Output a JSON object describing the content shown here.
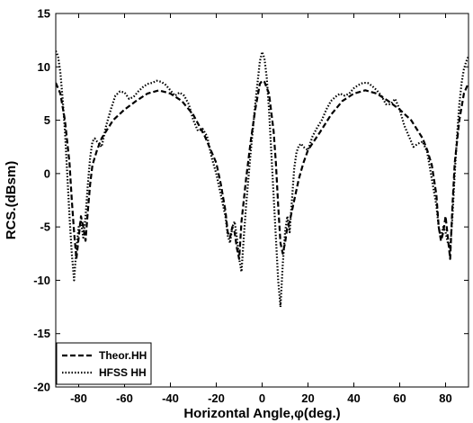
{
  "chart_data": {
    "type": "line",
    "xlabel": "Horizontal Angle,φ(deg.)",
    "ylabel": "RCS.(dBsm)",
    "xlim": [
      -90,
      90
    ],
    "ylim": [
      -20,
      15
    ],
    "xticks": [
      -80,
      -60,
      -40,
      -20,
      0,
      20,
      40,
      60,
      80
    ],
    "yticks": [
      -20,
      -15,
      -10,
      -5,
      0,
      5,
      10,
      15
    ],
    "grid": false,
    "legend_position": "bottom-left",
    "series": [
      {
        "name": "Theor.HH",
        "style": "dashed",
        "color": "#000000",
        "points": [
          [
            -90,
            8.5
          ],
          [
            -88,
            7.5
          ],
          [
            -86,
            5.0
          ],
          [
            -84,
            1.0
          ],
          [
            -83,
            -2.5
          ],
          [
            -82,
            -5.5
          ],
          [
            -81,
            -8.0
          ],
          [
            -80,
            -6.0
          ],
          [
            -79,
            -4.0
          ],
          [
            -78,
            -5.0
          ],
          [
            -77,
            -6.3
          ],
          [
            -76,
            -3.5
          ],
          [
            -75,
            -1.0
          ],
          [
            -74,
            0.8
          ],
          [
            -72,
            2.2
          ],
          [
            -70,
            3.3
          ],
          [
            -65,
            5.0
          ],
          [
            -60,
            6.0
          ],
          [
            -55,
            6.8
          ],
          [
            -50,
            7.5
          ],
          [
            -45,
            7.8
          ],
          [
            -40,
            7.5
          ],
          [
            -35,
            6.8
          ],
          [
            -30,
            5.5
          ],
          [
            -25,
            3.5
          ],
          [
            -20,
            1.0
          ],
          [
            -18,
            -1.0
          ],
          [
            -16,
            -3.5
          ],
          [
            -15,
            -5.5
          ],
          [
            -14,
            -6.0
          ],
          [
            -13,
            -5.0
          ],
          [
            -12,
            -5.5
          ],
          [
            -11,
            -7.0
          ],
          [
            -10,
            -8.0
          ],
          [
            -9,
            -4.5
          ],
          [
            -7,
            -0.5
          ],
          [
            -5,
            3.0
          ],
          [
            -3,
            6.0
          ],
          [
            -1,
            8.4
          ],
          [
            0,
            8.7
          ],
          [
            1,
            8.6
          ],
          [
            3,
            7.5
          ],
          [
            5,
            4.0
          ],
          [
            6,
            1.0
          ],
          [
            7,
            -3.0
          ],
          [
            8,
            -6.5
          ],
          [
            9,
            -7.5
          ],
          [
            10,
            -6.5
          ],
          [
            11,
            -5.0
          ],
          [
            12,
            -4.5
          ],
          [
            14,
            -2.5
          ],
          [
            16,
            -0.5
          ],
          [
            18,
            1.0
          ],
          [
            20,
            2.2
          ],
          [
            25,
            3.8
          ],
          [
            30,
            5.5
          ],
          [
            35,
            6.8
          ],
          [
            40,
            7.5
          ],
          [
            45,
            7.8
          ],
          [
            50,
            7.5
          ],
          [
            55,
            6.8
          ],
          [
            60,
            6.0
          ],
          [
            65,
            5.0
          ],
          [
            70,
            3.3
          ],
          [
            72,
            2.2
          ],
          [
            74,
            0.8
          ],
          [
            76,
            -2.0
          ],
          [
            77,
            -5.0
          ],
          [
            78,
            -6.3
          ],
          [
            79,
            -5.5
          ],
          [
            80,
            -4.0
          ],
          [
            81,
            -6.0
          ],
          [
            82,
            -8.0
          ],
          [
            83,
            -3.0
          ],
          [
            84,
            1.0
          ],
          [
            86,
            5.0
          ],
          [
            88,
            7.5
          ],
          [
            90,
            8.5
          ]
        ]
      },
      {
        "name": "HFSS HH",
        "style": "dotted",
        "color": "#000000",
        "points": [
          [
            -90,
            11.5
          ],
          [
            -89,
            11.0
          ],
          [
            -88,
            9.5
          ],
          [
            -87,
            7.0
          ],
          [
            -86,
            4.0
          ],
          [
            -85,
            0.0
          ],
          [
            -84,
            -4.0
          ],
          [
            -83,
            -7.5
          ],
          [
            -82,
            -10.0
          ],
          [
            -81,
            -7.0
          ],
          [
            -80,
            -5.0
          ],
          [
            -79,
            -4.5
          ],
          [
            -78,
            -6.0
          ],
          [
            -77,
            -4.0
          ],
          [
            -76,
            -1.0
          ],
          [
            -75,
            1.5
          ],
          [
            -74,
            3.0
          ],
          [
            -73,
            3.3
          ],
          [
            -72,
            3.0
          ],
          [
            -70,
            2.5
          ],
          [
            -68,
            4.5
          ],
          [
            -66,
            6.0
          ],
          [
            -64,
            7.3
          ],
          [
            -62,
            7.7
          ],
          [
            -60,
            7.6
          ],
          [
            -58,
            7.0
          ],
          [
            -56,
            7.2
          ],
          [
            -54,
            7.7
          ],
          [
            -52,
            8.1
          ],
          [
            -50,
            8.4
          ],
          [
            -48,
            8.5
          ],
          [
            -46,
            8.7
          ],
          [
            -44,
            8.6
          ],
          [
            -42,
            8.3
          ],
          [
            -40,
            7.8
          ],
          [
            -38,
            7.3
          ],
          [
            -36,
            7.6
          ],
          [
            -34,
            7.3
          ],
          [
            -32,
            6.5
          ],
          [
            -30,
            5.0
          ],
          [
            -28,
            4.0
          ],
          [
            -26,
            4.2
          ],
          [
            -24,
            3.5
          ],
          [
            -22,
            1.5
          ],
          [
            -20,
            0.0
          ],
          [
            -18,
            -2.0
          ],
          [
            -16,
            -4.0
          ],
          [
            -15,
            -5.8
          ],
          [
            -14,
            -6.5
          ],
          [
            -13,
            -5.0
          ],
          [
            -12,
            -4.5
          ],
          [
            -11,
            -6.0
          ],
          [
            -10,
            -8.0
          ],
          [
            -9,
            -9.2
          ],
          [
            -8,
            -6.0
          ],
          [
            -7,
            -3.0
          ],
          [
            -5,
            2.0
          ],
          [
            -3,
            6.5
          ],
          [
            -1,
            10.5
          ],
          [
            0,
            11.4
          ],
          [
            1,
            10.8
          ],
          [
            2,
            9.0
          ],
          [
            3,
            6.0
          ],
          [
            4,
            2.0
          ],
          [
            5,
            -2.0
          ],
          [
            6,
            -6.0
          ],
          [
            7,
            -10.0
          ],
          [
            8,
            -12.5
          ],
          [
            9,
            -8.5
          ],
          [
            10,
            -5.5
          ],
          [
            11,
            -4.0
          ],
          [
            12,
            -5.5
          ],
          [
            13,
            -2.5
          ],
          [
            14,
            0.5
          ],
          [
            15,
            2.0
          ],
          [
            16,
            2.6
          ],
          [
            17,
            2.8
          ],
          [
            18,
            2.5
          ],
          [
            20,
            2.2
          ],
          [
            22,
            3.5
          ],
          [
            24,
            4.3
          ],
          [
            26,
            5.0
          ],
          [
            28,
            6.0
          ],
          [
            30,
            6.8
          ],
          [
            32,
            7.2
          ],
          [
            34,
            7.5
          ],
          [
            36,
            7.3
          ],
          [
            38,
            7.5
          ],
          [
            40,
            8.0
          ],
          [
            42,
            8.3
          ],
          [
            44,
            8.5
          ],
          [
            46,
            8.5
          ],
          [
            48,
            8.2
          ],
          [
            50,
            7.8
          ],
          [
            52,
            7.3
          ],
          [
            54,
            6.5
          ],
          [
            56,
            6.5
          ],
          [
            58,
            7.0
          ],
          [
            60,
            6.0
          ],
          [
            62,
            4.5
          ],
          [
            64,
            3.5
          ],
          [
            66,
            2.5
          ],
          [
            68,
            2.8
          ],
          [
            70,
            3.0
          ],
          [
            72,
            2.0
          ],
          [
            74,
            -0.5
          ],
          [
            76,
            -3.0
          ],
          [
            77,
            -5.0
          ],
          [
            78,
            -6.0
          ],
          [
            79,
            -5.0
          ],
          [
            80,
            -5.5
          ],
          [
            81,
            -6.5
          ],
          [
            82,
            -7.0
          ],
          [
            83,
            -4.0
          ],
          [
            84,
            0.0
          ],
          [
            85,
            3.5
          ],
          [
            86,
            6.5
          ],
          [
            87,
            8.5
          ],
          [
            88,
            9.8
          ],
          [
            89,
            10.5
          ],
          [
            90,
            11.0
          ]
        ]
      }
    ]
  }
}
